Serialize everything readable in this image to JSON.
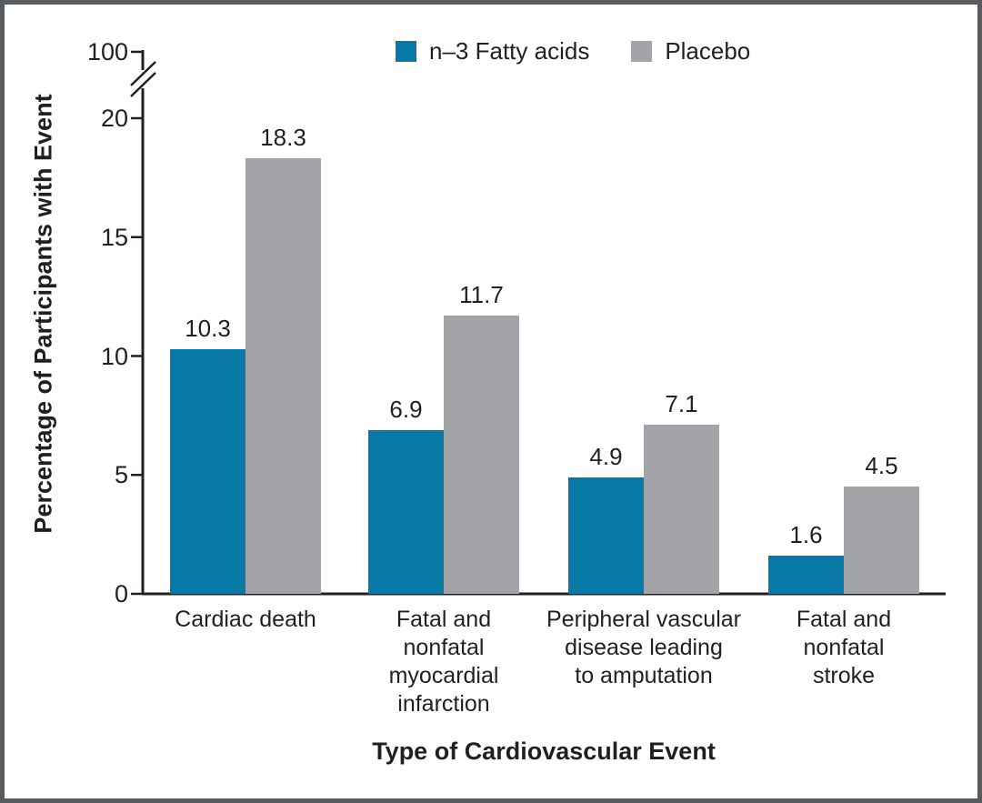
{
  "figure": {
    "border_color": "#595c5e",
    "text_color": "#231f20",
    "axis_color": "#231f20"
  },
  "chart_data": {
    "type": "bar",
    "title": "",
    "xlabel": "Type of Cardiovascular Event",
    "ylabel": "Percentage of Participants with Event",
    "categories": [
      "Cardiac death",
      "Fatal and\nnonfatal\nmyocardial\ninfarction",
      "Peripheral vascular\ndisease leading\nto amputation",
      "Fatal and\nnonfatal\nstroke"
    ],
    "series": [
      {
        "name": "n–3 Fatty acids",
        "color": "#0878a6",
        "values": [
          10.3,
          6.9,
          4.9,
          1.6
        ]
      },
      {
        "name": "Placebo",
        "color": "#a2a4a7",
        "values": [
          18.3,
          11.7,
          7.1,
          4.5
        ]
      }
    ],
    "value_labels": {
      "n3_fatty_acids": [
        "10.3",
        "6.9",
        "4.9",
        "1.6"
      ],
      "placebo": [
        "18.3",
        "11.7",
        "7.1",
        "4.5"
      ]
    },
    "yticks_linear": [
      0,
      5,
      10,
      15,
      20
    ],
    "ytick_break_top": 100,
    "axis_break": true,
    "ylim_display": [
      0,
      20
    ],
    "grid": false,
    "legend_position": "top-center"
  }
}
